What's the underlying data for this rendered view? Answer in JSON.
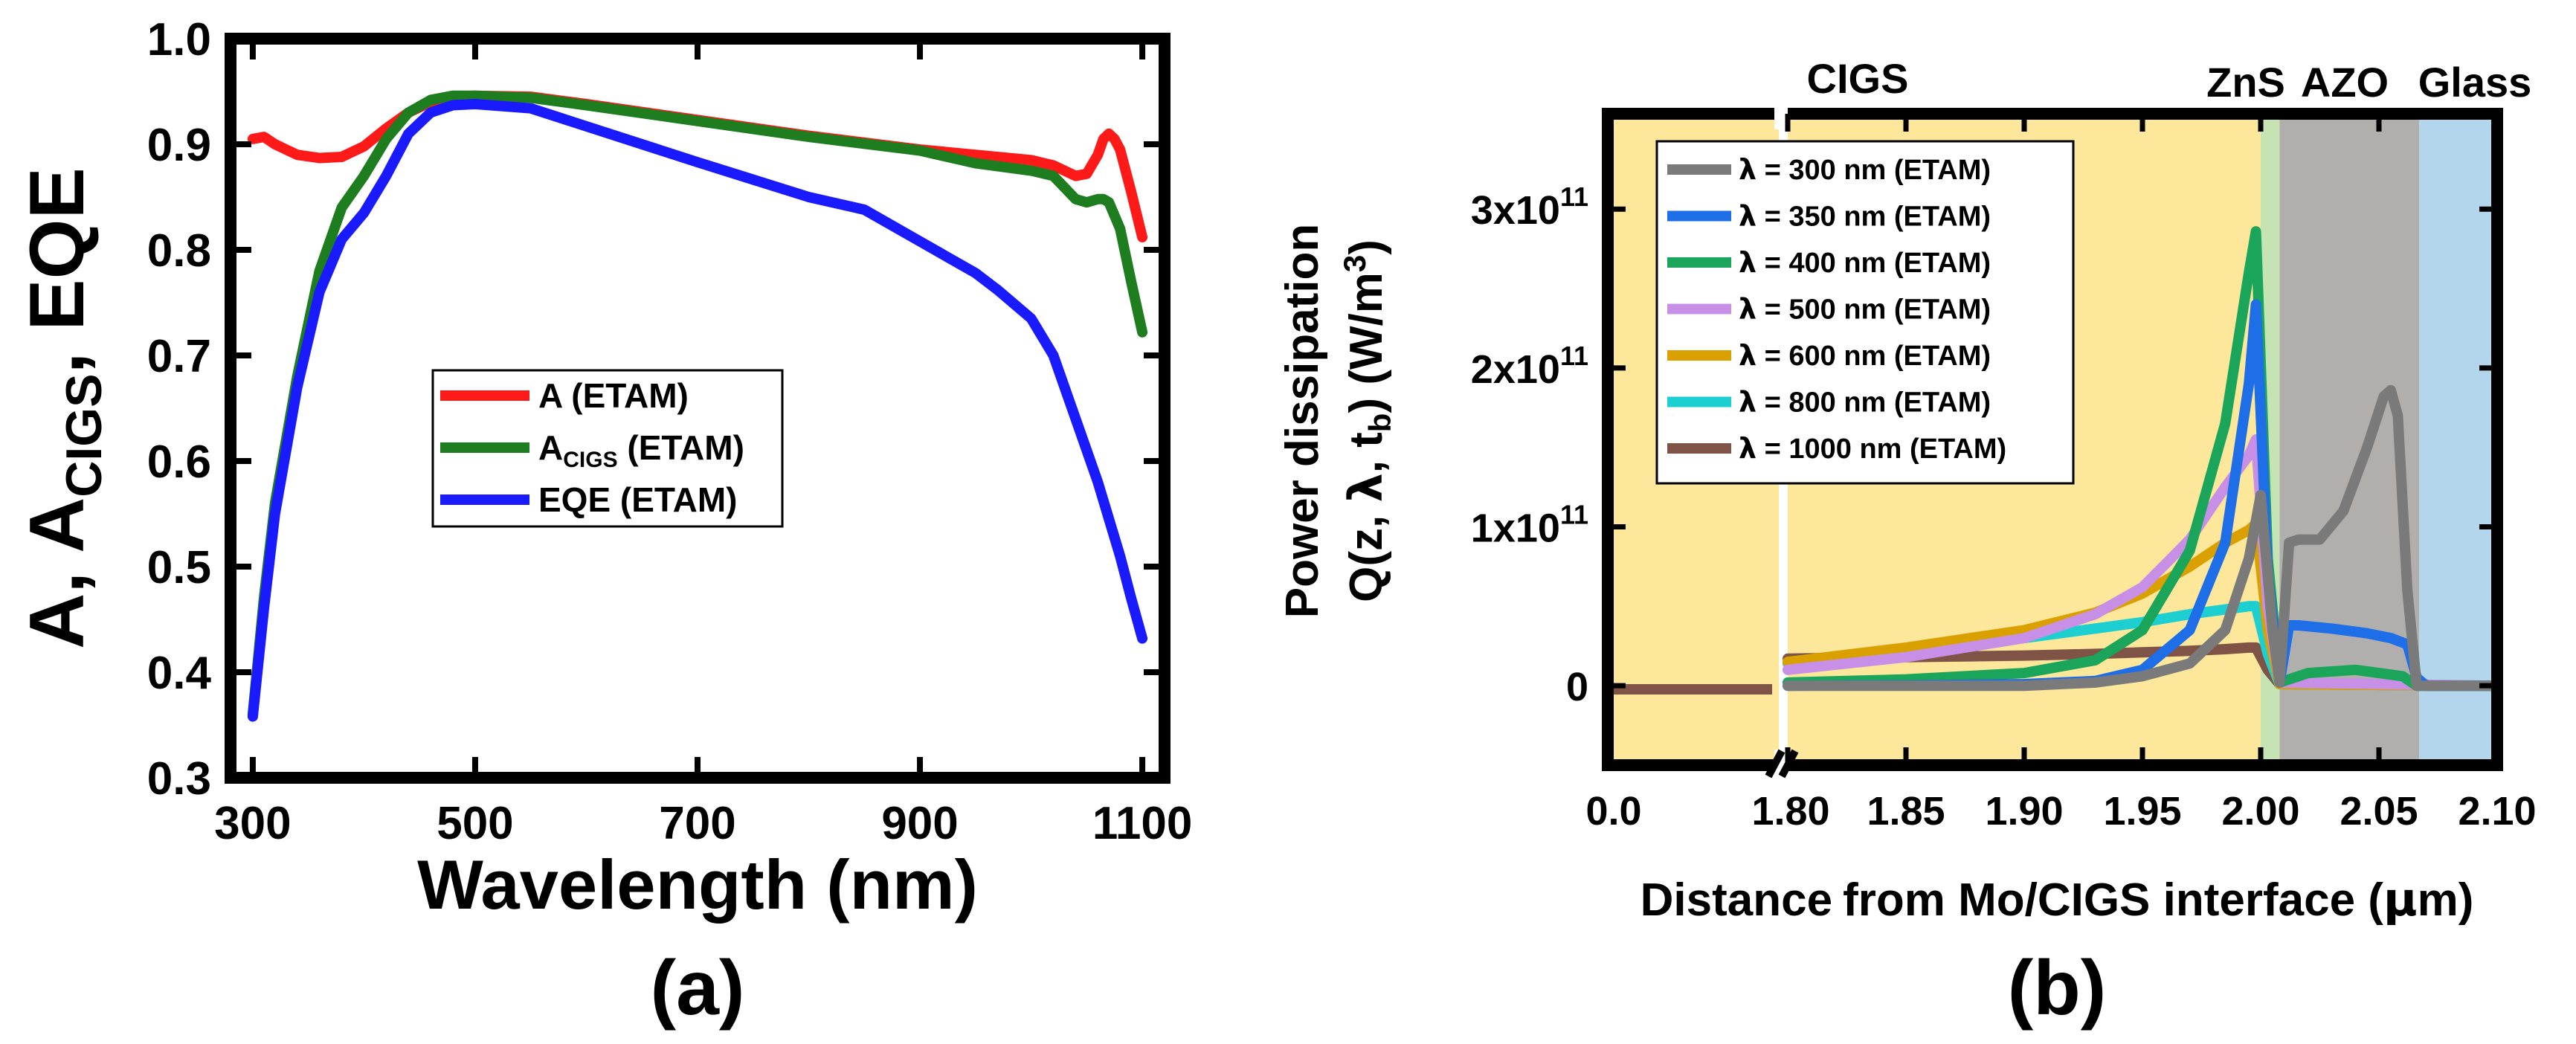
{
  "chart_data": [
    {
      "type": "line",
      "panel_label": "(a)",
      "xlabel": "Wavelength (nm)",
      "ylabel_parts": [
        "A, A",
        "CIGS",
        ", EQE"
      ],
      "xlim": [
        280,
        1120
      ],
      "ylim": [
        0.3,
        1.0
      ],
      "xticks": [
        300,
        500,
        700,
        900,
        1100
      ],
      "xtick_labels": [
        "300",
        "500",
        "700",
        "900",
        "1100"
      ],
      "yticks": [
        0.3,
        0.4,
        0.5,
        0.6,
        0.7,
        0.8,
        0.9,
        1.0
      ],
      "ytick_labels": [
        "0.3",
        "0.4",
        "0.5",
        "0.6",
        "0.7",
        "0.8",
        "0.9",
        "1.0"
      ],
      "legend_position": "center",
      "series": [
        {
          "name": "A (ETAM)",
          "legend_parts": [
            "A (ETAM)"
          ],
          "color": "#ff1a1a",
          "x": [
            300,
            310,
            320,
            340,
            360,
            380,
            400,
            420,
            440,
            460,
            480,
            500,
            550,
            600,
            700,
            800,
            900,
            950,
            1000,
            1020,
            1040,
            1050,
            1060,
            1065,
            1070,
            1075,
            1080,
            1090,
            1100
          ],
          "y": [
            0.905,
            0.907,
            0.9,
            0.89,
            0.887,
            0.888,
            0.898,
            0.915,
            0.93,
            0.94,
            0.945,
            0.946,
            0.945,
            0.938,
            0.923,
            0.908,
            0.895,
            0.89,
            0.885,
            0.88,
            0.87,
            0.872,
            0.89,
            0.905,
            0.91,
            0.905,
            0.895,
            0.855,
            0.812
          ]
        },
        {
          "name": "ACIGS (ETAM)",
          "legend_parts": [
            "A",
            "CIGS",
            " (ETAM)"
          ],
          "color": "#1e7d1e",
          "x": [
            300,
            310,
            320,
            340,
            360,
            380,
            400,
            420,
            440,
            460,
            480,
            500,
            550,
            600,
            700,
            800,
            900,
            950,
            1000,
            1020,
            1040,
            1050,
            1060,
            1065,
            1070,
            1080,
            1090,
            1100
          ],
          "y": [
            0.36,
            0.47,
            0.56,
            0.68,
            0.78,
            0.84,
            0.87,
            0.905,
            0.93,
            0.942,
            0.946,
            0.946,
            0.944,
            0.937,
            0.922,
            0.907,
            0.894,
            0.882,
            0.875,
            0.87,
            0.848,
            0.845,
            0.848,
            0.848,
            0.845,
            0.82,
            0.77,
            0.722
          ]
        },
        {
          "name": "EQE (ETAM)",
          "legend_parts": [
            "EQE (ETAM)"
          ],
          "color": "#1a1aff",
          "x": [
            300,
            310,
            320,
            340,
            360,
            380,
            400,
            420,
            440,
            460,
            480,
            500,
            550,
            600,
            700,
            800,
            850,
            900,
            950,
            970,
            1000,
            1020,
            1040,
            1060,
            1080,
            1090,
            1100
          ],
          "y": [
            0.358,
            0.46,
            0.55,
            0.67,
            0.76,
            0.81,
            0.835,
            0.87,
            0.91,
            0.93,
            0.937,
            0.938,
            0.934,
            0.917,
            0.883,
            0.85,
            0.838,
            0.808,
            0.778,
            0.762,
            0.735,
            0.7,
            0.64,
            0.58,
            0.51,
            0.47,
            0.432
          ]
        }
      ]
    },
    {
      "type": "line",
      "panel_label": "(b)",
      "xlabel_words": [
        "Distance",
        "from Mo/CIGS interface (",
        "μ",
        "m)"
      ],
      "ylabel_line1": "Power dissipation",
      "ylabel_line2_parts": [
        "Q(z, ",
        "λ",
        ", t",
        "b",
        ") (W/m",
        "3",
        ")"
      ],
      "xlim": [
        1.768,
        2.1
      ],
      "ylim": [
        -50000000000.0,
        360000000000.0
      ],
      "broken_axis": {
        "left_segment_label": "0.0",
        "break_between": [
          "0.0",
          "1.80"
        ]
      },
      "xticks": [
        1.8,
        1.85,
        1.9,
        1.95,
        2.0,
        2.05,
        2.1
      ],
      "xtick_labels": [
        "1.80",
        "1.85",
        "1.90",
        "1.95",
        "2.00",
        "2.05",
        "2.10"
      ],
      "yticks": [
        0,
        100000000000.0,
        200000000000.0,
        300000000000.0
      ],
      "ytick_labels": [
        {
          "base": "0",
          "exp": ""
        },
        {
          "base": "1x10",
          "exp": "11"
        },
        {
          "base": "2x10",
          "exp": "11"
        },
        {
          "base": "3x10",
          "exp": "11"
        }
      ],
      "regions": [
        {
          "name": "CIGS",
          "from": 1.768,
          "to": 2.0,
          "color": "#fde79a"
        },
        {
          "name": "ZnS",
          "from": 2.0,
          "to": 2.008,
          "color": "#c6e3b4"
        },
        {
          "name": "AZO",
          "from": 2.008,
          "to": 2.067,
          "color": "#b1aeae"
        },
        {
          "name": "Glass",
          "from": 2.067,
          "to": 2.1,
          "color": "#b3d6ec"
        }
      ],
      "region_labels": [
        "CIGS",
        "ZnS",
        "AZO",
        "Glass"
      ],
      "legend_position": "top-left",
      "series": [
        {
          "name": "λ = 300 nm (ETAM)",
          "legend_symbol": "λ",
          "legend_rest": " = 300 nm (ETAM)",
          "color": "#7a7a7a",
          "x": [
            1.8,
            1.85,
            1.9,
            1.93,
            1.95,
            1.97,
            1.985,
            1.995,
            2.0,
            2.005,
            2.008,
            2.012,
            2.016,
            2.025,
            2.035,
            2.045,
            2.052,
            2.055,
            2.058,
            2.062,
            2.066,
            2.07,
            2.1
          ],
          "y": [
            0,
            0,
            0,
            2000000000.0,
            6000000000.0,
            14000000000.0,
            35000000000.0,
            80000000000.0,
            120000000000.0,
            35000000000.0,
            2000000000.0,
            90000000000.0,
            92000000000.0,
            92000000000.0,
            110000000000.0,
            150000000000.0,
            182000000000.0,
            186000000000.0,
            170000000000.0,
            60000000000.0,
            0,
            0,
            0
          ]
        },
        {
          "name": "λ = 350 nm (ETAM)",
          "legend_symbol": "λ",
          "legend_rest": " = 350 nm (ETAM)",
          "color": "#1e6ee8",
          "x": [
            1.8,
            1.85,
            1.9,
            1.93,
            1.95,
            1.97,
            1.985,
            1.995,
            1.998,
            2.003,
            2.008,
            2.012,
            2.016,
            2.03,
            2.045,
            2.055,
            2.062,
            2.066,
            2.07,
            2.1
          ],
          "y": [
            0,
            200000000.0,
            1000000000.0,
            3000000000.0,
            10000000000.0,
            35000000000.0,
            90000000000.0,
            190000000000.0,
            240000000000.0,
            70000000000.0,
            2000000000.0,
            38000000000.0,
            38000000000.0,
            36000000000.0,
            33000000000.0,
            30000000000.0,
            26000000000.0,
            5000000000.0,
            0,
            0
          ]
        },
        {
          "name": "λ = 400 nm (ETAM)",
          "legend_symbol": "λ",
          "legend_rest": " = 400 nm (ETAM)",
          "color": "#1aa55a",
          "x": [
            1.8,
            1.85,
            1.9,
            1.93,
            1.95,
            1.97,
            1.985,
            1.995,
            1.998,
            2.003,
            2.008,
            2.02,
            2.04,
            2.06,
            2.066,
            2.1
          ],
          "y": [
            2000000000.0,
            4000000000.0,
            8000000000.0,
            16000000000.0,
            35000000000.0,
            85000000000.0,
            165000000000.0,
            260000000000.0,
            286000000000.0,
            80000000000.0,
            2000000000.0,
            8000000000.0,
            10000000000.0,
            6000000000.0,
            0,
            0
          ]
        },
        {
          "name": "λ = 500 nm (ETAM)",
          "legend_symbol": "λ",
          "legend_rest": " = 500 nm (ETAM)",
          "color": "#c88fe6",
          "x": [
            1.8,
            1.85,
            1.9,
            1.93,
            1.95,
            1.97,
            1.985,
            1.995,
            1.998,
            2.003,
            2.008,
            2.1
          ],
          "y": [
            10000000000.0,
            18000000000.0,
            30000000000.0,
            45000000000.0,
            62000000000.0,
            92000000000.0,
            125000000000.0,
            145000000000.0,
            155000000000.0,
            50000000000.0,
            2000000000.0,
            0
          ]
        },
        {
          "name": "λ = 600 nm (ETAM)",
          "legend_symbol": "λ",
          "legend_rest": " = 600 nm (ETAM)",
          "color": "#d9a000",
          "x": [
            1.8,
            1.85,
            1.9,
            1.93,
            1.95,
            1.97,
            1.985,
            1.995,
            1.998,
            2.003,
            2.008,
            2.1
          ],
          "y": [
            15000000000.0,
            24000000000.0,
            35000000000.0,
            46000000000.0,
            58000000000.0,
            75000000000.0,
            90000000000.0,
            98000000000.0,
            102000000000.0,
            35000000000.0,
            1000000000.0,
            0
          ]
        },
        {
          "name": "λ = 800 nm (ETAM)",
          "legend_symbol": "λ",
          "legend_rest": " = 800 nm (ETAM)",
          "color": "#1ecfd2",
          "x": [
            1.8,
            1.85,
            1.9,
            1.93,
            1.95,
            1.97,
            1.985,
            1.995,
            1.998,
            2.003,
            2.008,
            2.1
          ],
          "y": [
            14000000000.0,
            22000000000.0,
            30000000000.0,
            36000000000.0,
            40000000000.0,
            45000000000.0,
            48000000000.0,
            50000000000.0,
            50000000000.0,
            20000000000.0,
            1000000000.0,
            0
          ]
        },
        {
          "name": "λ = 1000 nm (ETAM)",
          "legend_symbol": "λ",
          "legend_rest": " = 1000 nm (ETAM)",
          "color": "#7f5346",
          "x": [
            1.8,
            1.85,
            1.9,
            1.93,
            1.95,
            1.97,
            1.985,
            1.995,
            1.998,
            2.003,
            2.008,
            2.1
          ],
          "y": [
            17000000000.0,
            18000000000.0,
            19000000000.0,
            20000000000.0,
            21000000000.0,
            22000000000.0,
            23000000000.0,
            24000000000.0,
            24000000000.0,
            10000000000.0,
            1000000000.0,
            0
          ]
        }
      ]
    }
  ]
}
